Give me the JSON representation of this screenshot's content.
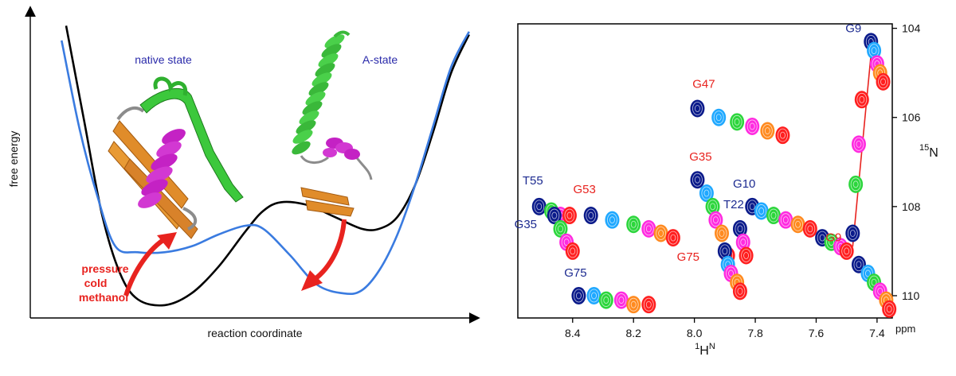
{
  "chart_data": [
    {
      "type": "line",
      "xlabel": "reaction coordinate",
      "ylabel": "free energy",
      "state_labels": [
        "native state",
        "A-state"
      ],
      "perturbation_labels": [
        "pressure",
        "cold",
        "methanol"
      ],
      "series": [
        {
          "color": "#000000",
          "x": [
            0.08,
            0.12,
            0.16,
            0.2,
            0.24,
            0.3,
            0.36,
            0.42,
            0.48,
            0.52,
            0.56,
            0.62,
            0.68,
            0.74,
            0.78,
            0.82,
            0.86,
            0.9,
            0.94,
            0.98
          ],
          "y": [
            0.98,
            0.66,
            0.34,
            0.14,
            0.05,
            0.03,
            0.07,
            0.16,
            0.28,
            0.35,
            0.38,
            0.37,
            0.33,
            0.29,
            0.29,
            0.33,
            0.44,
            0.62,
            0.82,
            0.95
          ]
        },
        {
          "color": "#3a7be0",
          "x": [
            0.07,
            0.11,
            0.15,
            0.19,
            0.24,
            0.3,
            0.36,
            0.42,
            0.48,
            0.52,
            0.58,
            0.64,
            0.7,
            0.74,
            0.78,
            0.82,
            0.86,
            0.9,
            0.94,
            0.98
          ],
          "y": [
            0.93,
            0.63,
            0.4,
            0.23,
            0.21,
            0.21,
            0.23,
            0.27,
            0.3,
            0.29,
            0.2,
            0.1,
            0.07,
            0.08,
            0.15,
            0.27,
            0.44,
            0.64,
            0.84,
            0.96
          ]
        }
      ],
      "colors": {
        "arrow": "#e8231f",
        "native_label": "#2a2aaa",
        "a_state_label": "#2a2aaa",
        "pressure_text": "#e8231f"
      }
    },
    {
      "type": "scatter",
      "xlabel_main": "H",
      "xlabel_sup": "1",
      "xlabel_sup2": "N",
      "ylabel_main": "N",
      "ylabel_sup": "15",
      "x_unit": "ppm",
      "xlim": [
        8.58,
        7.35
      ],
      "ylim": [
        110.5,
        103.9
      ],
      "xticks": [
        "8.4",
        "8.2",
        "8.0",
        "7.8",
        "7.6",
        "7.4"
      ],
      "xtick_values": [
        8.4,
        8.2,
        8.0,
        7.8,
        7.6,
        7.4
      ],
      "yticks": [
        "104",
        "106",
        "108",
        "110"
      ],
      "ytick_values": [
        104,
        106,
        108,
        110
      ],
      "peak_colors": [
        "#0a1a8a",
        "#1fa8ff",
        "#2cd63c",
        "#ff2be0",
        "#ff8a1f",
        "#ff1f1f"
      ],
      "peak_series": [
        {
          "name": "G9",
          "label_color": "#1c2a90",
          "x": [
            7.42,
            7.41,
            7.4,
            7.39,
            7.38
          ],
          "y": [
            104.3,
            104.5,
            104.8,
            105.0,
            105.2
          ]
        },
        {
          "name": "G47",
          "label_color": "#e8231f",
          "x": [
            7.99,
            7.92,
            7.86,
            7.81,
            7.76,
            7.71
          ],
          "y": [
            105.8,
            106.0,
            106.1,
            106.2,
            106.3,
            106.4
          ]
        },
        {
          "name": "G9",
          "label_color": "#e8231f",
          "x": [
            7.48,
            7.47,
            7.46,
            7.45
          ],
          "y": [
            108.6,
            107.5,
            106.6,
            105.6
          ]
        },
        {
          "name": "T55",
          "label_color": "#1c2a90",
          "x": [
            8.51,
            8.47,
            8.44,
            8.41
          ],
          "y": [
            108.0,
            108.1,
            108.2,
            108.2
          ]
        },
        {
          "name": "G35",
          "label_color": "#1c2a90",
          "x": [
            8.46,
            8.44,
            8.42,
            8.4
          ],
          "y": [
            108.2,
            108.5,
            108.8,
            109.0
          ]
        },
        {
          "name": "G53",
          "label_color": "#e8231f",
          "x": [
            8.34,
            8.27,
            8.2,
            8.15,
            8.11,
            8.07
          ],
          "y": [
            108.2,
            108.3,
            108.4,
            108.5,
            108.6,
            108.7
          ]
        },
        {
          "name": "G35",
          "label_color": "#e8231f",
          "x": [
            7.99,
            7.96,
            7.94,
            7.93,
            7.91,
            7.89
          ],
          "y": [
            107.4,
            107.7,
            108.0,
            108.3,
            108.6,
            109.1
          ]
        },
        {
          "name": "T22",
          "label_color": "#1c2a90",
          "x": [
            7.85,
            7.84,
            7.83
          ],
          "y": [
            108.5,
            108.8,
            109.1
          ]
        },
        {
          "name": "G10",
          "label_color": "#1c2a90",
          "x": [
            7.81,
            7.78,
            7.74,
            7.7,
            7.66,
            7.62
          ],
          "y": [
            108.0,
            108.1,
            108.2,
            108.3,
            108.4,
            108.5
          ]
        },
        {
          "name": "G75",
          "label_color": "#e8231f",
          "x": [
            7.9,
            7.89,
            7.88,
            7.86,
            7.85
          ],
          "y": [
            109.0,
            109.3,
            109.5,
            109.7,
            109.9
          ]
        },
        {
          "name": "G75",
          "label_color": "#1c2a90",
          "x": [
            8.38,
            8.33,
            8.29,
            8.24,
            8.2,
            8.15
          ],
          "y": [
            110.0,
            110.0,
            110.1,
            110.1,
            110.2,
            110.2
          ]
        },
        {
          "name": "",
          "label_color": "",
          "x": [
            7.46,
            7.43,
            7.41,
            7.39,
            7.37,
            7.36
          ],
          "y": [
            109.3,
            109.5,
            109.7,
            109.9,
            110.1,
            110.3
          ]
        },
        {
          "name": "",
          "label_color": "",
          "x": [
            7.58,
            7.55,
            7.52,
            7.5
          ],
          "y": [
            108.7,
            108.8,
            108.9,
            109.0
          ]
        }
      ],
      "fit_line": {
        "color": "#e8231f",
        "x": [
          7.48,
          7.42
        ],
        "y": [
          108.9,
          104.6
        ]
      }
    }
  ]
}
